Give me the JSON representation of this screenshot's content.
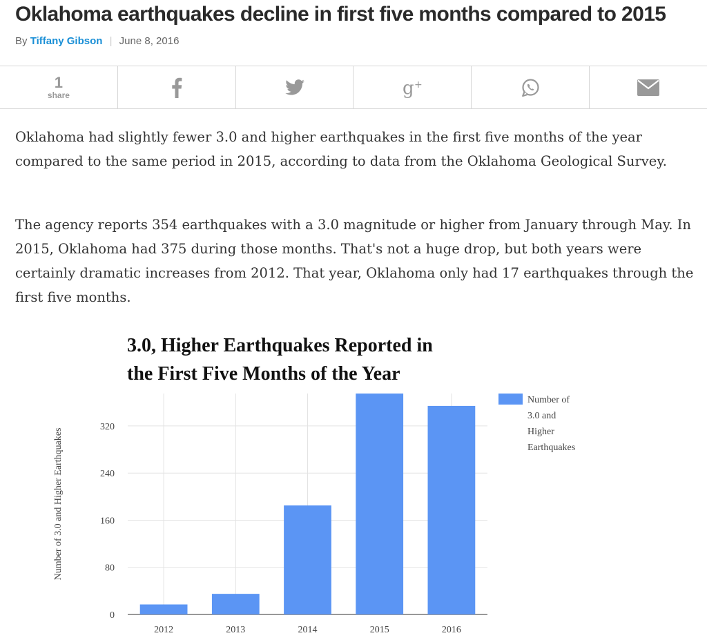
{
  "article": {
    "headline": "Oklahoma earthquakes decline in first five months compared to 2015",
    "byline_prefix": "By",
    "author": "Tiffany Gibson",
    "byline_separator": "|",
    "date": "June 8, 2016"
  },
  "share_bar": {
    "count": "1",
    "count_label": "share",
    "icons": [
      "facebook-icon",
      "twitter-icon",
      "google-plus-icon",
      "whatsapp-icon",
      "email-icon"
    ],
    "icon_color": "#999999"
  },
  "body": {
    "p1": "Oklahoma had slightly fewer 3.0 and higher earthquakes in the first five months of the year compared to the same period in 2015, according to data from the Oklahoma Geological Survey.",
    "p2": "The agency reports 354 earthquakes with a 3.0 magnitude or higher from January through May. In 2015, Oklahoma had 375 during those months. That's not a huge drop, but both years were certainly dramatic increases from 2012. That year, Oklahoma only had 17 earthquakes through the first five months."
  },
  "chart_data": {
    "type": "bar",
    "title": "3.0, Higher Earthquakes Reported in the First Five Months of the Year",
    "title_lines": [
      "3.0, Higher Earthquakes Reported in",
      "the First Five Months of the Year"
    ],
    "categories": [
      "2012",
      "2013",
      "2014",
      "2015",
      "2016"
    ],
    "series": [
      {
        "name": "Number of 3.0 and Higher Earthquakes",
        "values": [
          17,
          35,
          185,
          375,
          354
        ],
        "color": "#5b95f4"
      }
    ],
    "legend_lines": [
      "Number of",
      "3.0 and",
      "Higher",
      "Earthquakes"
    ],
    "legend_position": "right",
    "xlabel": "",
    "ylabel": "Number of 3.0 and Higher Earthquakes",
    "yticks": [
      0,
      80,
      160,
      240,
      320
    ],
    "ylim": [
      0,
      375
    ],
    "grid": true
  }
}
